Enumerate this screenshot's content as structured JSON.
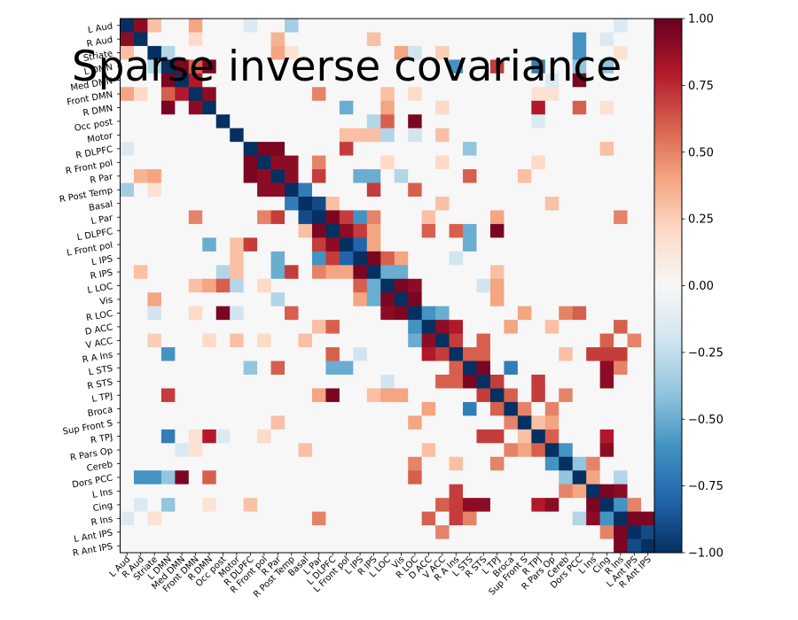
{
  "chart_data": {
    "type": "heatmap",
    "title": "Sparse inverse covariance",
    "xlabel": "",
    "ylabel": "",
    "labels": [
      "L Aud",
      "R Aud",
      "Striate",
      "L DMN",
      "Med DMN",
      "Front DMN",
      "R DMN",
      "Occ post",
      "Motor",
      "R DLPFC",
      "R Front pol",
      "R Par",
      "R Post Temp",
      "Basal",
      "L Par",
      "L DLPFC",
      "L Front pol",
      "L IPS",
      "R IPS",
      "L LOC",
      "Vis",
      "R LOC",
      "D ACC",
      "V ACC",
      "R A Ins",
      "L STS",
      "R STS",
      "L TPJ",
      "Broca",
      "Sup Front S",
      "R TPJ",
      "R Pars Op",
      "Cereb",
      "Dors PCC",
      "L Ins",
      "Cing",
      "R Ins",
      "L Ant IPS",
      "R Ant IPS"
    ],
    "colormap": "RdBu_r",
    "vmin": -1.0,
    "vmax": 1.0,
    "colorbar_ticks": [
      "1.00",
      "0.75",
      "0.50",
      "0.25",
      "0.00",
      "−0.25",
      "−0.50",
      "−0.75",
      "−1.00"
    ],
    "diagonal_value": -1.0,
    "offdiag_fill_value": 0.0,
    "entries": [
      [
        0,
        1,
        0.9
      ],
      [
        0,
        2,
        0.3
      ],
      [
        0,
        5,
        0.4
      ],
      [
        0,
        9,
        -0.15
      ],
      [
        0,
        12,
        -0.35
      ],
      [
        0,
        36,
        -0.15
      ],
      [
        1,
        5,
        0.2
      ],
      [
        1,
        11,
        0.35
      ],
      [
        1,
        18,
        0.3
      ],
      [
        1,
        33,
        -0.6
      ],
      [
        1,
        35,
        -0.15
      ],
      [
        2,
        3,
        -0.3
      ],
      [
        2,
        11,
        0.4
      ],
      [
        2,
        12,
        0.15
      ],
      [
        2,
        20,
        0.4
      ],
      [
        2,
        21,
        -0.2
      ],
      [
        2,
        23,
        0.25
      ],
      [
        2,
        33,
        -0.6
      ],
      [
        2,
        36,
        0.15
      ],
      [
        3,
        4,
        0.95
      ],
      [
        3,
        5,
        0.6
      ],
      [
        3,
        6,
        0.95
      ],
      [
        3,
        24,
        -0.6
      ],
      [
        3,
        27,
        0.7
      ],
      [
        3,
        30,
        -0.7
      ],
      [
        3,
        33,
        -0.4
      ],
      [
        3,
        35,
        -0.4
      ],
      [
        4,
        5,
        0.8
      ],
      [
        4,
        31,
        -0.15
      ],
      [
        4,
        33,
        0.95
      ],
      [
        5,
        6,
        0.9
      ],
      [
        5,
        14,
        0.5
      ],
      [
        5,
        19,
        0.3
      ],
      [
        5,
        21,
        0.2
      ],
      [
        5,
        30,
        0.15
      ],
      [
        5,
        31,
        0.15
      ],
      [
        6,
        16,
        -0.5
      ],
      [
        6,
        19,
        0.4
      ],
      [
        6,
        23,
        0.2
      ],
      [
        6,
        30,
        0.8
      ],
      [
        6,
        33,
        0.6
      ],
      [
        6,
        35,
        0.15
      ],
      [
        7,
        18,
        -0.3
      ],
      [
        7,
        19,
        0.6
      ],
      [
        7,
        21,
        0.95
      ],
      [
        7,
        30,
        -0.15
      ],
      [
        8,
        16,
        0.3
      ],
      [
        8,
        17,
        0.3
      ],
      [
        8,
        18,
        0.3
      ],
      [
        8,
        19,
        -0.3
      ],
      [
        8,
        21,
        -0.2
      ],
      [
        8,
        23,
        0.3
      ],
      [
        9,
        10,
        0.95
      ],
      [
        9,
        11,
        0.95
      ],
      [
        9,
        16,
        0.7
      ],
      [
        9,
        25,
        -0.4
      ],
      [
        9,
        35,
        0.3
      ],
      [
        10,
        11,
        0.9
      ],
      [
        10,
        12,
        0.9
      ],
      [
        10,
        14,
        0.5
      ],
      [
        10,
        19,
        0.2
      ],
      [
        10,
        23,
        0.2
      ],
      [
        10,
        30,
        0.2
      ],
      [
        11,
        12,
        0.9
      ],
      [
        11,
        14,
        0.7
      ],
      [
        11,
        17,
        -0.5
      ],
      [
        11,
        18,
        -0.5
      ],
      [
        11,
        20,
        -0.3
      ],
      [
        11,
        25,
        0.6
      ],
      [
        11,
        29,
        0.3
      ],
      [
        12,
        13,
        -0.7
      ],
      [
        12,
        18,
        0.7
      ],
      [
        12,
        21,
        0.6
      ],
      [
        13,
        14,
        -0.9
      ],
      [
        13,
        15,
        0.3
      ],
      [
        13,
        23,
        0.3
      ],
      [
        13,
        31,
        0.3
      ],
      [
        14,
        15,
        0.95
      ],
      [
        14,
        16,
        0.7
      ],
      [
        14,
        17,
        -0.6
      ],
      [
        14,
        18,
        0.5
      ],
      [
        14,
        22,
        0.3
      ],
      [
        14,
        27,
        0.4
      ],
      [
        14,
        36,
        0.5
      ],
      [
        15,
        16,
        0.9
      ],
      [
        15,
        17,
        0.7
      ],
      [
        15,
        18,
        0.4
      ],
      [
        15,
        22,
        0.6
      ],
      [
        15,
        24,
        0.6
      ],
      [
        15,
        25,
        -0.5
      ],
      [
        15,
        27,
        0.95
      ],
      [
        16,
        17,
        -0.8
      ],
      [
        16,
        18,
        0.4
      ],
      [
        16,
        25,
        -0.5
      ],
      [
        17,
        18,
        0.95
      ],
      [
        17,
        19,
        0.6
      ],
      [
        17,
        20,
        0.4
      ],
      [
        17,
        24,
        -0.2
      ],
      [
        18,
        19,
        -0.5
      ],
      [
        18,
        20,
        -0.5
      ],
      [
        18,
        27,
        0.3
      ],
      [
        19,
        20,
        0.95
      ],
      [
        19,
        21,
        0.9
      ],
      [
        19,
        26,
        -0.2
      ],
      [
        19,
        27,
        0.4
      ],
      [
        20,
        21,
        0.95
      ],
      [
        20,
        27,
        0.4
      ],
      [
        21,
        22,
        -0.6
      ],
      [
        21,
        23,
        -0.5
      ],
      [
        21,
        29,
        0.4
      ],
      [
        21,
        32,
        0.5
      ],
      [
        21,
        33,
        0.6
      ],
      [
        22,
        23,
        0.9
      ],
      [
        22,
        24,
        0.8
      ],
      [
        22,
        28,
        0.4
      ],
      [
        22,
        31,
        0.3
      ],
      [
        22,
        36,
        0.6
      ],
      [
        23,
        24,
        0.7
      ],
      [
        23,
        26,
        0.6
      ],
      [
        23,
        35,
        0.6
      ],
      [
        23,
        37,
        0.5
      ],
      [
        24,
        25,
        0.6
      ],
      [
        24,
        26,
        0.6
      ],
      [
        24,
        32,
        0.3
      ],
      [
        24,
        34,
        0.7
      ],
      [
        24,
        35,
        0.7
      ],
      [
        24,
        36,
        0.7
      ],
      [
        25,
        26,
        0.95
      ],
      [
        25,
        28,
        -0.7
      ],
      [
        25,
        35,
        0.9
      ],
      [
        25,
        36,
        0.5
      ],
      [
        26,
        27,
        0.7
      ],
      [
        26,
        30,
        0.7
      ],
      [
        26,
        35,
        0.9
      ],
      [
        27,
        28,
        0.6
      ],
      [
        27,
        30,
        0.7
      ],
      [
        27,
        32,
        0.5
      ],
      [
        28,
        29,
        0.5
      ],
      [
        28,
        31,
        0.5
      ],
      [
        29,
        30,
        0.3
      ],
      [
        29,
        31,
        0.4
      ],
      [
        30,
        31,
        0.6
      ],
      [
        30,
        35,
        0.8
      ],
      [
        31,
        32,
        -0.6
      ],
      [
        31,
        35,
        0.9
      ],
      [
        32,
        33,
        -0.4
      ],
      [
        32,
        34,
        0.5
      ],
      [
        33,
        34,
        0.4
      ],
      [
        33,
        36,
        -0.3
      ],
      [
        34,
        35,
        0.95
      ],
      [
        34,
        36,
        0.9
      ],
      [
        35,
        36,
        -0.6
      ],
      [
        35,
        37,
        0.5
      ],
      [
        36,
        37,
        0.95
      ],
      [
        36,
        38,
        0.95
      ],
      [
        37,
        38,
        -0.9
      ]
    ]
  }
}
